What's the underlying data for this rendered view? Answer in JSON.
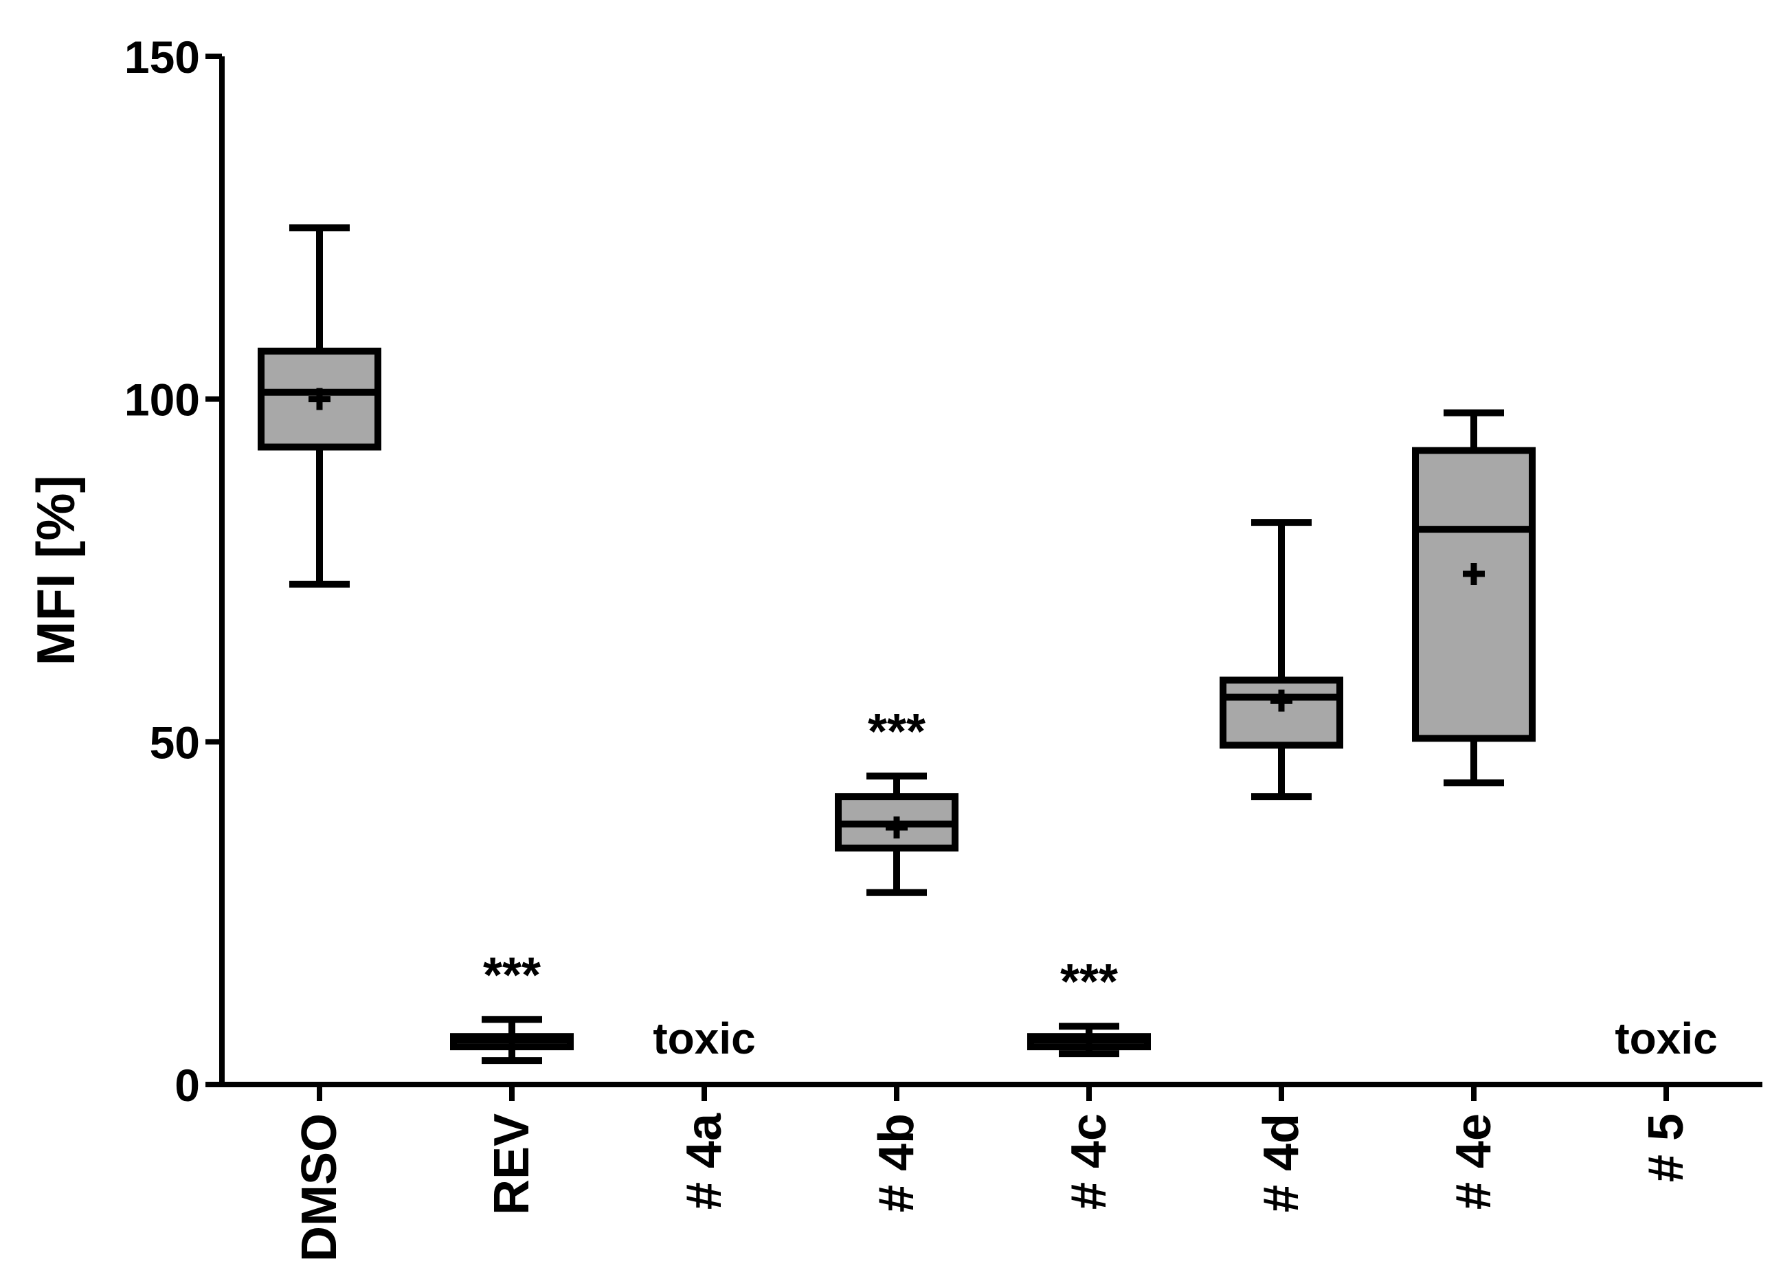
{
  "chart_data": {
    "type": "boxplot",
    "title": "",
    "xlabel": "",
    "ylabel": "MFI [%]",
    "ylim": [
      0,
      150
    ],
    "yticks": [
      0,
      50,
      100,
      150
    ],
    "grid": false,
    "legend": "none",
    "colors": {
      "box_fill": "#a8a8a8",
      "stroke": "#000000"
    },
    "categories": [
      "DMSO",
      "REV",
      "# 4a",
      "# 4b",
      "# 4c",
      "# 4d",
      "# 4e",
      "# 5"
    ],
    "boxes": [
      {
        "category": "DMSO",
        "min": 73,
        "q1": 93,
        "median": 101,
        "q3": 107,
        "max": 125,
        "mean": 100,
        "annotation": ""
      },
      {
        "category": "REV",
        "min": 3.5,
        "q1": 5.5,
        "median": 6.5,
        "q3": 7,
        "max": 9.5,
        "mean": 6.5,
        "annotation": "***"
      },
      {
        "category": "# 4a",
        "toxic": true,
        "label": "toxic"
      },
      {
        "category": "# 4b",
        "min": 28,
        "q1": 34.5,
        "median": 38,
        "q3": 42,
        "max": 45,
        "mean": 37.5,
        "annotation": "***"
      },
      {
        "category": "# 4c",
        "min": 4.5,
        "q1": 5.5,
        "median": 6.5,
        "q3": 7,
        "max": 8.5,
        "mean": 6.5,
        "annotation": "***"
      },
      {
        "category": "# 4d",
        "min": 42,
        "q1": 49.5,
        "median": 56.5,
        "q3": 59,
        "max": 82,
        "mean": 56,
        "annotation": ""
      },
      {
        "category": "# 4e",
        "min": 44,
        "q1": 50.5,
        "median": 81,
        "q3": 92.5,
        "max": 98,
        "mean": 74.5,
        "annotation": ""
      },
      {
        "category": "# 5",
        "toxic": true,
        "label": "toxic"
      }
    ]
  }
}
